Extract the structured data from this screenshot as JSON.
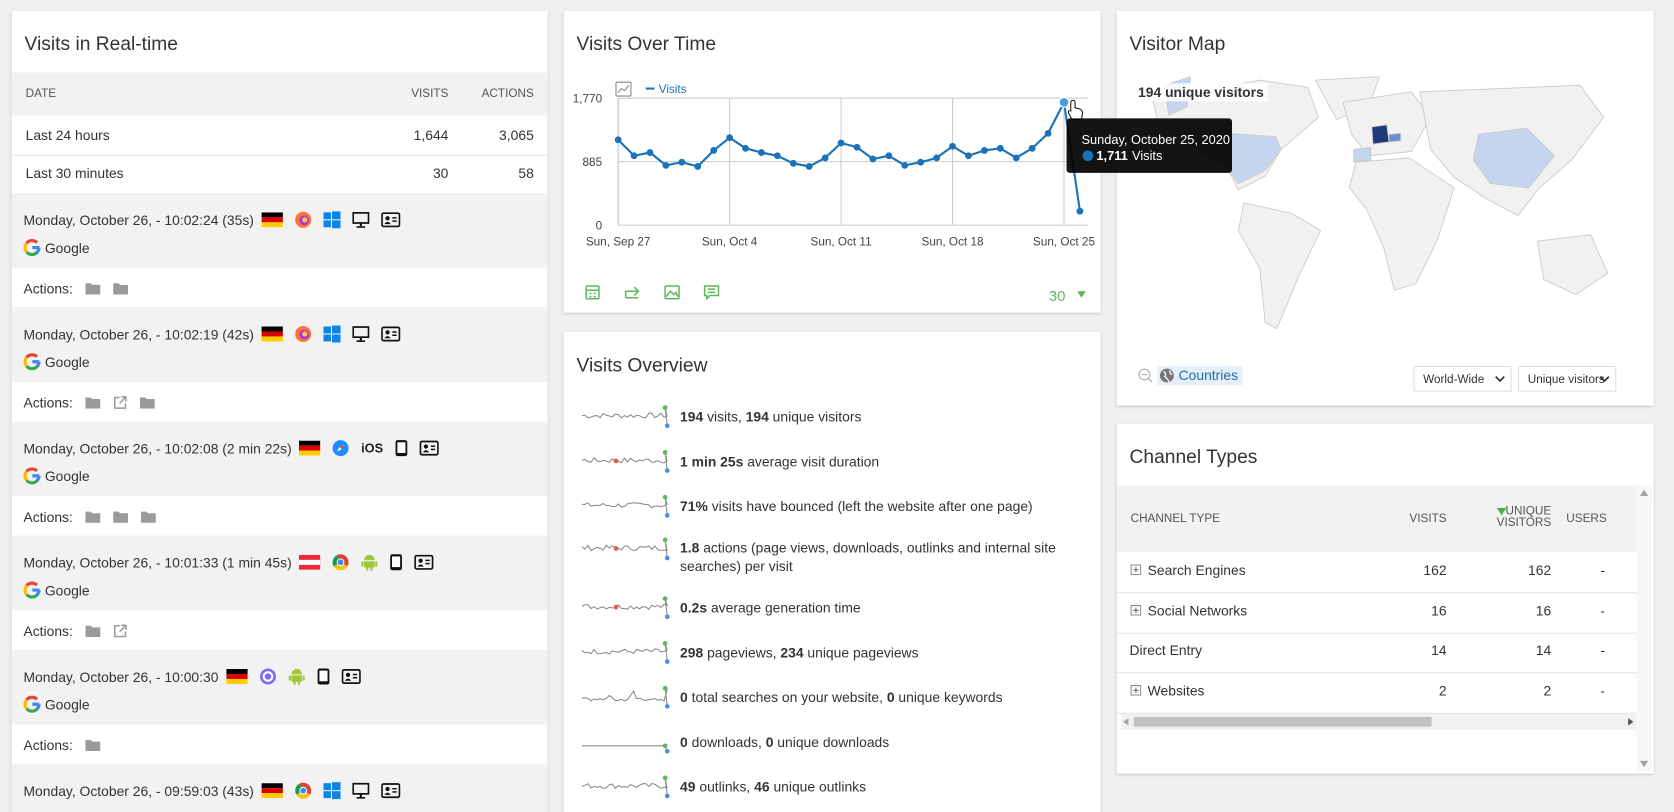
{
  "realtime": {
    "title": "Visits in Real-time",
    "columns": [
      "DATE",
      "VISITS",
      "ACTIONS"
    ],
    "summary": [
      {
        "label": "Last 24 hours",
        "visits": "1,644",
        "actions": "3,065"
      },
      {
        "label": "Last 30 minutes",
        "visits": "30",
        "actions": "58"
      }
    ],
    "actions_label": "Actions:",
    "visits": [
      {
        "time": "Monday, October 26, - 10:02:24 (35s)",
        "referrer": "Google"
      },
      {
        "time": "Monday, October 26, - 10:02:19 (42s)",
        "referrer": "Google"
      },
      {
        "time": "Monday, October 26, - 10:02:08 (2 min 22s)",
        "os": "iOS",
        "referrer": "Google"
      },
      {
        "time": "Monday, October 26, - 10:01:33 (1 min 45s)",
        "referrer": "Google"
      },
      {
        "time": "Monday, October 26, - 10:00:30",
        "referrer": "Google"
      },
      {
        "time": "Monday, October 26, - 09:59:03 (43s)"
      }
    ]
  },
  "chart_data": {
    "type": "line",
    "title": "Visits Over Time",
    "categories": [
      "Sun, Sep 27",
      null,
      null,
      null,
      null,
      null,
      null,
      "Sun, Oct 4",
      null,
      null,
      null,
      null,
      null,
      null,
      "Sun, Oct 11",
      null,
      null,
      null,
      null,
      null,
      null,
      "Sun, Oct 18",
      null,
      null,
      null,
      null,
      null,
      null,
      "Sun, Oct 25",
      null
    ],
    "series": [
      {
        "name": "Visits",
        "color": "#1a73b8",
        "values": [
          1190,
          967,
          1012,
          833,
          877,
          818,
          1041,
          1219,
          1071,
          1012,
          967,
          862,
          818,
          937,
          1145,
          1086,
          922,
          967,
          833,
          877,
          937,
          1100,
          967,
          1041,
          1071,
          937,
          1071,
          1279,
          1711,
          194
        ]
      }
    ],
    "ylim": [
      0,
      1770
    ],
    "yticks": [
      0,
      {
        "value": 885,
        "label": "885"
      },
      {
        "value": 1770,
        "label": "1,770"
      }
    ],
    "grid": true,
    "tooltip": {
      "title": "Sunday, October 25, 2020",
      "value_label": "1,711"
    },
    "period": "30"
  },
  "overview": {
    "title": "Visits Overview",
    "items": [
      [
        "194",
        " visits, ",
        "194",
        " unique visitors"
      ],
      [
        "1 min 25s",
        " average visit duration"
      ],
      [
        "71%",
        " visits have bounced (left the website after one page)"
      ],
      [
        "1.8",
        " actions (page views, downloads, outlinks and internal site searches) per visit"
      ],
      [
        "0.2s",
        " average generation time"
      ],
      [
        "298",
        " pageviews, ",
        "234",
        " unique pageviews"
      ],
      [
        "0",
        " total searches on your website, ",
        "0",
        " unique keywords"
      ],
      [
        "0",
        " downloads, ",
        "0",
        " unique downloads"
      ],
      [
        "49",
        " outlinks, ",
        "46",
        " unique outlinks"
      ]
    ]
  },
  "map": {
    "title": "Visitor Map",
    "summary": "194 unique visitors",
    "mode": "Countries",
    "region": "World-Wide",
    "metric": "Unique visitors"
  },
  "channels": {
    "title": "Channel Types",
    "columns": [
      "CHANNEL TYPE",
      "VISITS",
      "UNIQUE VISITORS",
      "USERS"
    ],
    "rows": [
      {
        "label": "Search Engines",
        "visits": "162",
        "unique": "162",
        "users": "-",
        "expandable": true
      },
      {
        "label": "Social Networks",
        "visits": "16",
        "unique": "16",
        "users": "-",
        "expandable": true
      },
      {
        "label": "Direct Entry",
        "visits": "14",
        "unique": "14",
        "users": "-",
        "expandable": false
      },
      {
        "label": "Websites",
        "visits": "2",
        "unique": "2",
        "users": "-",
        "expandable": true
      }
    ]
  }
}
